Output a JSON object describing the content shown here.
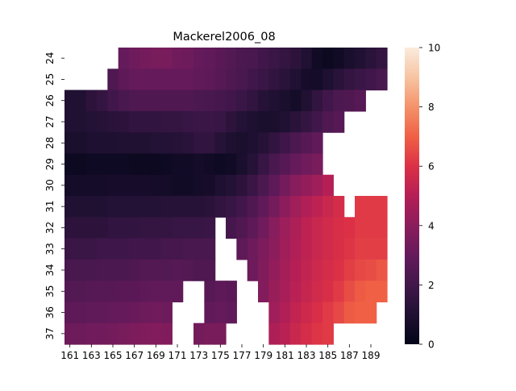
{
  "chart_data": {
    "type": "heatmap",
    "title": "Mackerel2006_08",
    "xlabel": "",
    "ylabel": "",
    "x_tick_labels": [
      "161",
      "163",
      "165",
      "167",
      "169",
      "171",
      "173",
      "175",
      "177",
      "179",
      "181",
      "183",
      "185",
      "187",
      "189"
    ],
    "y_tick_labels": [
      "24",
      "25",
      "26",
      "27",
      "28",
      "29",
      "30",
      "31",
      "32",
      "33",
      "34",
      "35",
      "36",
      "37"
    ],
    "x": [
      161,
      162,
      163,
      164,
      165,
      166,
      167,
      168,
      169,
      170,
      171,
      172,
      173,
      174,
      175,
      176,
      177,
      178,
      179,
      180,
      181,
      182,
      183,
      184,
      185,
      186,
      187,
      188,
      189,
      190
    ],
    "y": [
      24,
      25,
      26,
      27,
      28,
      29,
      30,
      31,
      32,
      33,
      34,
      35,
      36,
      37
    ],
    "z": [
      [
        null,
        null,
        null,
        null,
        null,
        3.0,
        3.2,
        3.4,
        3.5,
        3.5,
        3.3,
        3.2,
        3.0,
        2.9,
        2.7,
        2.5,
        2.3,
        2.2,
        2.0,
        1.8,
        1.6,
        1.4,
        1.0,
        0.5,
        0.3,
        0.5,
        0.8,
        1.0,
        1.3,
        1.6
      ],
      [
        null,
        null,
        null,
        null,
        2.4,
        2.8,
        3.0,
        3.0,
        3.0,
        3.0,
        3.0,
        3.0,
        2.9,
        2.8,
        2.6,
        2.4,
        2.2,
        2.0,
        1.8,
        1.5,
        1.3,
        1.0,
        0.7,
        0.6,
        0.9,
        1.3,
        1.6,
        1.8,
        2.0,
        2.2
      ],
      [
        1.0,
        1.0,
        1.4,
        1.6,
        2.0,
        2.2,
        2.4,
        2.4,
        2.4,
        2.4,
        2.4,
        2.4,
        2.3,
        2.2,
        2.1,
        2.0,
        1.8,
        1.5,
        1.2,
        1.0,
        0.8,
        0.6,
        1.0,
        1.5,
        2.0,
        2.3,
        2.4,
        2.6,
        null,
        null
      ],
      [
        1.0,
        1.0,
        1.1,
        1.2,
        1.3,
        1.4,
        1.5,
        1.5,
        1.5,
        1.6,
        1.6,
        1.7,
        1.8,
        1.8,
        1.7,
        1.4,
        1.1,
        0.9,
        0.8,
        0.8,
        1.0,
        1.3,
        1.6,
        2.0,
        2.4,
        2.6,
        null,
        null,
        null,
        null
      ],
      [
        0.8,
        0.8,
        0.9,
        0.9,
        0.9,
        1.0,
        1.0,
        1.0,
        1.1,
        1.1,
        1.2,
        1.3,
        1.5,
        1.5,
        1.2,
        0.9,
        0.8,
        0.9,
        1.2,
        1.5,
        1.9,
        2.3,
        2.6,
        2.9,
        null,
        null,
        null,
        null,
        null,
        null
      ],
      [
        0.3,
        0.3,
        0.4,
        0.4,
        0.4,
        0.4,
        0.3,
        0.3,
        0.3,
        0.4,
        0.5,
        0.5,
        0.6,
        0.5,
        0.4,
        0.5,
        0.8,
        1.2,
        1.7,
        2.2,
        2.6,
        3.0,
        3.3,
        3.5,
        null,
        null,
        null,
        null,
        null,
        null
      ],
      [
        0.6,
        0.6,
        0.6,
        0.6,
        0.7,
        0.7,
        0.7,
        0.7,
        0.6,
        0.6,
        0.5,
        0.5,
        0.6,
        0.7,
        0.9,
        1.1,
        1.4,
        1.8,
        2.3,
        2.8,
        3.4,
        3.9,
        4.2,
        4.5,
        5.0,
        null,
        null,
        null,
        null,
        null
      ],
      [
        1.0,
        1.0,
        1.0,
        1.0,
        1.1,
        1.1,
        1.1,
        1.1,
        1.1,
        1.2,
        1.2,
        1.2,
        1.2,
        1.3,
        1.5,
        1.7,
        2.0,
        2.4,
        2.9,
        3.4,
        4.0,
        4.5,
        4.9,
        5.2,
        5.5,
        5.8,
        null,
        6.2,
        6.2,
        6.2
      ],
      [
        1.4,
        1.4,
        1.4,
        1.4,
        1.5,
        1.5,
        1.5,
        1.6,
        1.6,
        1.6,
        1.7,
        1.7,
        1.7,
        1.8,
        null,
        2.1,
        2.4,
        2.8,
        3.3,
        3.9,
        4.4,
        4.8,
        5.2,
        5.5,
        5.7,
        5.9,
        6.0,
        6.2,
        6.2,
        6.2
      ],
      [
        1.8,
        1.8,
        1.8,
        1.9,
        1.9,
        1.9,
        2.0,
        2.0,
        2.0,
        2.1,
        2.1,
        2.2,
        2.2,
        2.2,
        null,
        null,
        2.8,
        3.2,
        3.6,
        4.0,
        4.5,
        4.9,
        5.2,
        5.5,
        5.7,
        5.9,
        6.1,
        6.3,
        6.3,
        6.3
      ],
      [
        2.2,
        2.2,
        2.2,
        2.3,
        2.3,
        2.3,
        2.4,
        2.5,
        2.5,
        2.5,
        2.6,
        2.5,
        2.4,
        2.4,
        null,
        null,
        null,
        3.2,
        3.7,
        4.2,
        4.6,
        5.0,
        5.3,
        5.6,
        5.8,
        6.0,
        6.3,
        6.5,
        6.6,
        6.8
      ],
      [
        2.5,
        2.5,
        2.6,
        2.6,
        2.6,
        2.7,
        2.7,
        2.8,
        2.9,
        2.9,
        2.9,
        null,
        null,
        2.6,
        2.8,
        2.7,
        null,
        null,
        3.8,
        4.3,
        4.7,
        5.1,
        5.4,
        5.7,
        5.9,
        6.2,
        6.6,
        6.9,
        7.0,
        7.0
      ],
      [
        2.8,
        2.8,
        2.9,
        2.9,
        3.0,
        3.0,
        3.1,
        3.2,
        3.3,
        3.2,
        null,
        null,
        null,
        2.9,
        3.0,
        2.9,
        null,
        null,
        null,
        4.5,
        4.9,
        5.3,
        5.6,
        5.9,
        6.2,
        6.5,
        6.9,
        7.0,
        7.0,
        null
      ],
      [
        3.2,
        3.2,
        3.3,
        3.3,
        3.4,
        3.5,
        3.6,
        3.7,
        3.8,
        3.7,
        null,
        null,
        3.4,
        3.5,
        3.5,
        null,
        null,
        null,
        null,
        4.8,
        5.1,
        5.5,
        5.8,
        6.1,
        6.2,
        null,
        null,
        null,
        null,
        null
      ]
    ],
    "colormap": "rocket",
    "colorbar": {
      "min": 0,
      "max": 10,
      "ticks": [
        "0",
        "2",
        "4",
        "6",
        "8",
        "10"
      ]
    },
    "grid": false,
    "legend": "colorbar-right"
  }
}
